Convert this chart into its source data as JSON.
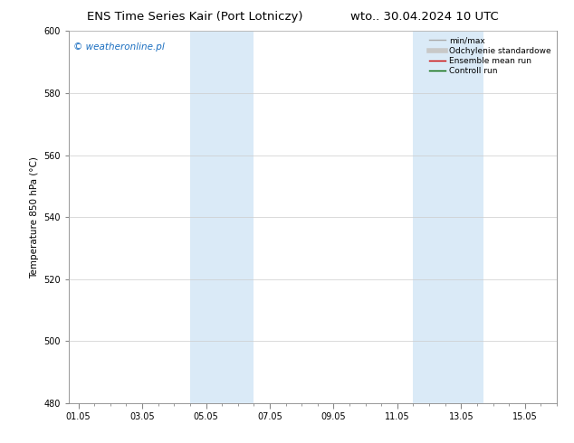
{
  "title_left": "ENS Time Series Kair (Port Lotniczy)",
  "title_right": "wto.. 30.04.2024 10 UTC",
  "ylabel": "Temperature 850 hPa (°C)",
  "ylim": [
    480,
    600
  ],
  "yticks": [
    480,
    500,
    520,
    540,
    560,
    580,
    600
  ],
  "xtick_labels": [
    "01.05",
    "03.05",
    "05.05",
    "07.05",
    "09.05",
    "11.05",
    "13.05",
    "15.05"
  ],
  "xtick_positions": [
    0,
    2,
    4,
    6,
    8,
    10,
    12,
    14
  ],
  "xlim": [
    -0.3,
    15.0
  ],
  "shaded_bands": [
    {
      "x_start": 3.5,
      "x_end": 5.5,
      "color": "#daeaf7"
    },
    {
      "x_start": 10.5,
      "x_end": 12.7,
      "color": "#daeaf7"
    }
  ],
  "watermark_text": "© weatheronline.pl",
  "watermark_color": "#1a6ec0",
  "legend_entries": [
    {
      "label": "min/max",
      "color": "#aaaaaa",
      "lw": 1.0,
      "style": "-"
    },
    {
      "label": "Odchylenie standardowe",
      "color": "#c8c8c8",
      "lw": 4,
      "style": "-"
    },
    {
      "label": "Ensemble mean run",
      "color": "#cc0000",
      "lw": 1.0,
      "style": "-"
    },
    {
      "label": "Controll run",
      "color": "#006600",
      "lw": 1.0,
      "style": "-"
    }
  ],
  "background_color": "#ffffff",
  "grid_color": "#cccccc",
  "title_fontsize": 9.5,
  "axis_label_fontsize": 7.5,
  "tick_fontsize": 7,
  "legend_fontsize": 6.5,
  "watermark_fontsize": 7.5
}
